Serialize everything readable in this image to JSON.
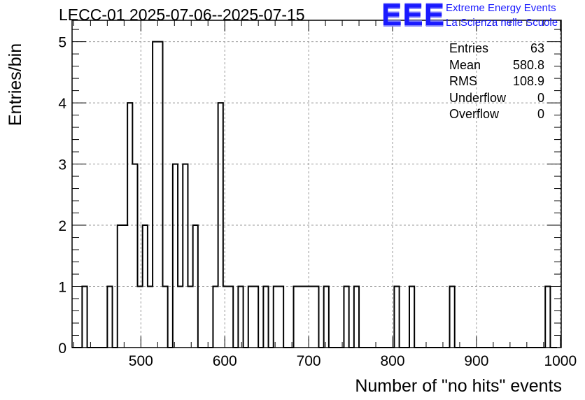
{
  "header": {
    "title": "LECC-01 2025-07-06--2025-07-15"
  },
  "logo": {
    "mark": "EEE",
    "line1": "Extreme Energy Events",
    "line2": "La Scienza nelle Scuole",
    "color": "#1a1aff"
  },
  "stats": {
    "rows": [
      {
        "label": "Entries",
        "value": "63"
      },
      {
        "label": "Mean",
        "value": "580.8"
      },
      {
        "label": "RMS",
        "value": "108.9"
      },
      {
        "label": "Underflow",
        "value": "0"
      },
      {
        "label": "Overflow",
        "value": "0"
      }
    ]
  },
  "chart_data": {
    "type": "bar",
    "title": "LECC-01 2025-07-06--2025-07-15",
    "xlabel": "Number of \"no hits\" events",
    "ylabel": "Entries/bin",
    "xlim": [
      418,
      1001
    ],
    "ylim": [
      0,
      5.35
    ],
    "x_ticks": [
      500,
      600,
      700,
      800,
      900,
      1000
    ],
    "y_ticks": [
      0,
      1,
      2,
      3,
      4,
      5
    ],
    "grid": true,
    "bin_width": 6,
    "bin_start": 418,
    "bars": [
      {
        "x0": 430,
        "x1": 436,
        "value": 1
      },
      {
        "x0": 460,
        "x1": 466,
        "value": 1
      },
      {
        "x0": 472,
        "x1": 478,
        "value": 2
      },
      {
        "x0": 478,
        "x1": 484,
        "value": 2
      },
      {
        "x0": 484,
        "x1": 490,
        "value": 4
      },
      {
        "x0": 490,
        "x1": 496,
        "value": 3
      },
      {
        "x0": 496,
        "x1": 502,
        "value": 1
      },
      {
        "x0": 502,
        "x1": 508,
        "value": 2
      },
      {
        "x0": 508,
        "x1": 514,
        "value": 1
      },
      {
        "x0": 514,
        "x1": 520,
        "value": 5
      },
      {
        "x0": 520,
        "x1": 526,
        "value": 5
      },
      {
        "x0": 526,
        "x1": 532,
        "value": 1
      },
      {
        "x0": 538,
        "x1": 544,
        "value": 3
      },
      {
        "x0": 544,
        "x1": 550,
        "value": 1
      },
      {
        "x0": 550,
        "x1": 556,
        "value": 3
      },
      {
        "x0": 556,
        "x1": 562,
        "value": 1
      },
      {
        "x0": 562,
        "x1": 568,
        "value": 2
      },
      {
        "x0": 586,
        "x1": 592,
        "value": 1
      },
      {
        "x0": 592,
        "x1": 598,
        "value": 4
      },
      {
        "x0": 598,
        "x1": 604,
        "value": 1
      },
      {
        "x0": 604,
        "x1": 610,
        "value": 1
      },
      {
        "x0": 616,
        "x1": 622,
        "value": 1
      },
      {
        "x0": 628,
        "x1": 634,
        "value": 1
      },
      {
        "x0": 634,
        "x1": 640,
        "value": 1
      },
      {
        "x0": 646,
        "x1": 652,
        "value": 1
      },
      {
        "x0": 658,
        "x1": 664,
        "value": 1
      },
      {
        "x0": 664,
        "x1": 670,
        "value": 1
      },
      {
        "x0": 682,
        "x1": 688,
        "value": 1
      },
      {
        "x0": 688,
        "x1": 694,
        "value": 1
      },
      {
        "x0": 694,
        "x1": 700,
        "value": 1
      },
      {
        "x0": 700,
        "x1": 706,
        "value": 1
      },
      {
        "x0": 706,
        "x1": 712,
        "value": 1
      },
      {
        "x0": 718,
        "x1": 724,
        "value": 1
      },
      {
        "x0": 742,
        "x1": 748,
        "value": 1
      },
      {
        "x0": 754,
        "x1": 760,
        "value": 1
      },
      {
        "x0": 802,
        "x1": 808,
        "value": 1
      },
      {
        "x0": 820,
        "x1": 826,
        "value": 1
      },
      {
        "x0": 868,
        "x1": 874,
        "value": 1
      },
      {
        "x0": 982,
        "x1": 988,
        "value": 1
      }
    ]
  }
}
